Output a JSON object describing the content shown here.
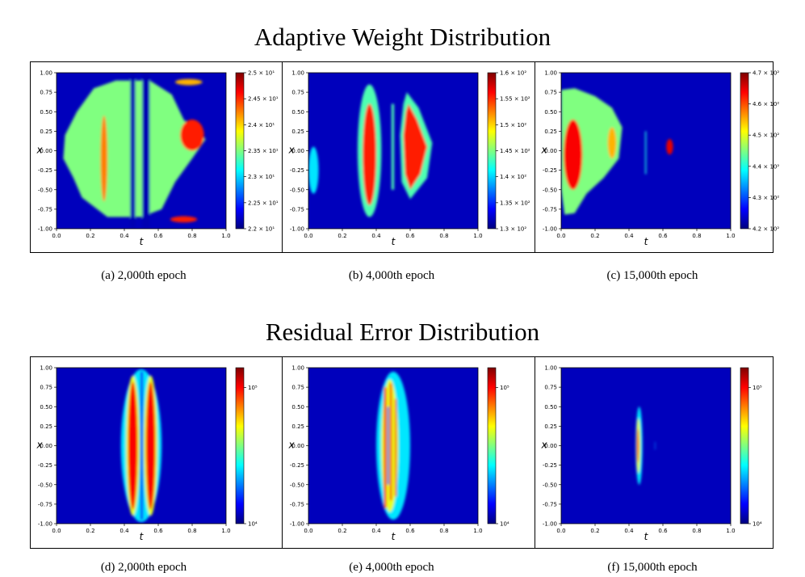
{
  "titles": {
    "top": "Adaptive Weight Distribution",
    "bottom": "Residual Error Distribution"
  },
  "colormap": [
    "#00007f",
    "#0000ff",
    "#0080ff",
    "#00ffff",
    "#80ff80",
    "#ffff00",
    "#ff8000",
    "#ff0000",
    "#7f0000"
  ],
  "chart_data": [
    {
      "type": "heatmap",
      "caption": "(a) 2,000th epoch",
      "xlabel": "t",
      "ylabel": "x",
      "xlim": [
        0.0,
        1.0
      ],
      "ylim": [
        -1.0,
        1.0
      ],
      "xticks": [
        "0.0",
        "0.2",
        "0.4",
        "0.6",
        "0.8",
        "1.0"
      ],
      "yticks": [
        "1.00",
        "0.75",
        "0.50",
        "0.25",
        "0.00",
        "-0.25",
        "-0.50",
        "-0.75",
        "-1.00"
      ],
      "colorbar": {
        "range": [
          22,
          25
        ],
        "ticks": [
          {
            "value": 25,
            "label": "2.5 × 10¹"
          },
          {
            "value": 24.5,
            "label": "2.45 × 10¹"
          },
          {
            "value": 24,
            "label": "2.4 × 10¹"
          },
          {
            "value": 23.5,
            "label": "2.35 × 10¹"
          },
          {
            "value": 23,
            "label": "2.3 × 10¹"
          },
          {
            "value": 22.5,
            "label": "2.25 × 10¹"
          },
          {
            "value": 22,
            "label": "2.2 × 10¹"
          }
        ]
      },
      "regions": [
        {
          "shape": "poly",
          "level": 0.5,
          "points": [
            [
              0.05,
              0.2
            ],
            [
              0.12,
              0.5
            ],
            [
              0.22,
              0.8
            ],
            [
              0.35,
              0.9
            ],
            [
              0.55,
              0.9
            ],
            [
              0.68,
              0.72
            ],
            [
              0.75,
              0.4
            ],
            [
              0.84,
              0.2
            ],
            [
              0.88,
              0.15
            ],
            [
              0.8,
              -0.1
            ],
            [
              0.7,
              -0.4
            ],
            [
              0.62,
              -0.75
            ],
            [
              0.5,
              -0.85
            ],
            [
              0.3,
              -0.85
            ],
            [
              0.15,
              -0.6
            ],
            [
              0.1,
              -0.35
            ],
            [
              0.04,
              -0.1
            ]
          ]
        },
        {
          "shape": "rect",
          "level": 0.05,
          "t0": 0.435,
          "t1": 0.465,
          "x0": -1.0,
          "x1": 1.0
        },
        {
          "shape": "rect",
          "level": 0.05,
          "t0": 0.505,
          "t1": 0.55,
          "x0": -1.0,
          "x1": 1.0
        },
        {
          "shape": "ellipse",
          "level": 0.85,
          "t": 0.8,
          "x": 0.2,
          "rt": 0.07,
          "rx": 0.2
        },
        {
          "shape": "ellipse",
          "level": 0.75,
          "t": 0.28,
          "x": -0.1,
          "rt": 0.02,
          "rx": 0.55
        },
        {
          "shape": "ellipse",
          "level": 0.85,
          "t": 0.75,
          "x": -0.88,
          "rt": 0.08,
          "rx": 0.04
        },
        {
          "shape": "ellipse",
          "level": 0.7,
          "t": 0.78,
          "x": 0.88,
          "rt": 0.08,
          "rx": 0.04
        }
      ]
    },
    {
      "type": "heatmap",
      "caption": "(b) 4,000th epoch",
      "xlabel": "t",
      "ylabel": "x",
      "xlim": [
        0.0,
        1.0
      ],
      "ylim": [
        -1.0,
        1.0
      ],
      "xticks": [
        "0.0",
        "0.2",
        "0.4",
        "0.6",
        "0.8",
        "1.0"
      ],
      "yticks": [
        "1.00",
        "0.75",
        "0.50",
        "0.25",
        "0.00",
        "-0.25",
        "-0.50",
        "-0.75",
        "-1.00"
      ],
      "colorbar": {
        "range": [
          130,
          160
        ],
        "ticks": [
          {
            "value": 160,
            "label": "1.6 × 10²"
          },
          {
            "value": 155,
            "label": "1.55 × 10²"
          },
          {
            "value": 150,
            "label": "1.5 × 10²"
          },
          {
            "value": 145,
            "label": "1.45 × 10²"
          },
          {
            "value": 140,
            "label": "1.4 × 10²"
          },
          {
            "value": 135,
            "label": "1.35 × 10²"
          },
          {
            "value": 130,
            "label": "1.3 × 10²"
          }
        ]
      },
      "regions": [
        {
          "shape": "ellipse",
          "level": 0.45,
          "t": 0.36,
          "x": 0.0,
          "rt": 0.07,
          "rx": 0.85
        },
        {
          "shape": "ellipse",
          "level": 0.85,
          "t": 0.36,
          "x": -0.05,
          "rt": 0.04,
          "rx": 0.65
        },
        {
          "shape": "rect",
          "level": 0.45,
          "t0": 0.49,
          "t1": 0.505,
          "x0": -0.5,
          "x1": 0.6
        },
        {
          "shape": "poly",
          "level": 0.45,
          "points": [
            [
              0.58,
              0.75
            ],
            [
              0.65,
              0.55
            ],
            [
              0.73,
              0.1
            ],
            [
              0.7,
              -0.35
            ],
            [
              0.6,
              -0.62
            ],
            [
              0.55,
              -0.4
            ],
            [
              0.54,
              0.2
            ],
            [
              0.56,
              0.6
            ]
          ]
        },
        {
          "shape": "poly",
          "level": 0.85,
          "points": [
            [
              0.59,
              0.6
            ],
            [
              0.64,
              0.4
            ],
            [
              0.7,
              0.05
            ],
            [
              0.66,
              -0.3
            ],
            [
              0.6,
              -0.5
            ],
            [
              0.57,
              -0.3
            ],
            [
              0.56,
              0.2
            ],
            [
              0.575,
              0.5
            ]
          ]
        },
        {
          "shape": "ellipse",
          "level": 0.35,
          "t": 0.03,
          "x": -0.25,
          "rt": 0.03,
          "rx": 0.3
        }
      ]
    },
    {
      "type": "heatmap",
      "caption": "(c) 15,000th epoch",
      "xlabel": "t",
      "ylabel": "x",
      "xlim": [
        0.0,
        1.0
      ],
      "ylim": [
        -1.0,
        1.0
      ],
      "xticks": [
        "0.0",
        "0.2",
        "0.4",
        "0.6",
        "0.8",
        "1.0"
      ],
      "yticks": [
        "1.00",
        "0.75",
        "0.50",
        "0.25",
        "0.00",
        "-0.25",
        "-0.50",
        "-0.75",
        "-1.00"
      ],
      "colorbar": {
        "range": [
          420,
          470
        ],
        "ticks": [
          {
            "value": 470,
            "label": "4.7 × 10²"
          },
          {
            "value": 460,
            "label": "4.6 × 10²"
          },
          {
            "value": 450,
            "label": "4.5 × 10²"
          },
          {
            "value": 440,
            "label": "4.4 × 10²"
          },
          {
            "value": 430,
            "label": "4.3 × 10²"
          },
          {
            "value": 420,
            "label": "4.2 × 10²"
          }
        ]
      },
      "regions": [
        {
          "shape": "poly",
          "level": 0.5,
          "points": [
            [
              0.0,
              0.78
            ],
            [
              0.08,
              0.8
            ],
            [
              0.2,
              0.7
            ],
            [
              0.3,
              0.55
            ],
            [
              0.36,
              0.3
            ],
            [
              0.34,
              -0.1
            ],
            [
              0.25,
              -0.35
            ],
            [
              0.15,
              -0.55
            ],
            [
              0.08,
              -0.8
            ],
            [
              0.02,
              -0.82
            ],
            [
              0.0,
              -0.5
            ]
          ]
        },
        {
          "shape": "ellipse",
          "level": 0.88,
          "t": 0.07,
          "x": -0.05,
          "rt": 0.055,
          "rx": 0.45
        },
        {
          "shape": "ellipse",
          "level": 0.7,
          "t": 0.3,
          "x": 0.1,
          "rt": 0.025,
          "rx": 0.2
        },
        {
          "shape": "ellipse",
          "level": 0.9,
          "t": 0.64,
          "x": 0.05,
          "rt": 0.02,
          "rx": 0.1
        },
        {
          "shape": "rect",
          "level": 0.4,
          "t0": 0.495,
          "t1": 0.502,
          "x0": -0.3,
          "x1": 0.25
        }
      ]
    },
    {
      "type": "heatmap",
      "caption": "(d) 2,000th epoch",
      "xlabel": "t",
      "ylabel": "x",
      "xlim": [
        0.0,
        1.0
      ],
      "ylim": [
        -1.0,
        1.0
      ],
      "xticks": [
        "0.0",
        "0.2",
        "0.4",
        "0.6",
        "0.8",
        "1.0"
      ],
      "yticks": [
        "1.00",
        "0.75",
        "0.50",
        "0.25",
        "0.00",
        "-0.25",
        "-0.50",
        "-0.75",
        "-1.00"
      ],
      "colorbar": {
        "range": [
          10000,
          140000
        ],
        "log": true,
        "ticks": [
          {
            "value": 100000,
            "label": "10⁵"
          },
          {
            "value": 10000,
            "label": "10⁴"
          }
        ]
      },
      "regions": [
        {
          "shape": "ellipse",
          "level": 0.35,
          "t": 0.5,
          "x": 0.0,
          "rt": 0.12,
          "rx": 0.98
        },
        {
          "shape": "ellipse",
          "level": 0.6,
          "t": 0.45,
          "x": 0.0,
          "rt": 0.04,
          "rx": 0.9
        },
        {
          "shape": "ellipse",
          "level": 0.88,
          "t": 0.45,
          "x": 0.0,
          "rt": 0.028,
          "rx": 0.82
        },
        {
          "shape": "ellipse",
          "level": 0.6,
          "t": 0.555,
          "x": 0.0,
          "rt": 0.04,
          "rx": 0.9
        },
        {
          "shape": "ellipse",
          "level": 0.88,
          "t": 0.555,
          "x": 0.0,
          "rt": 0.028,
          "rx": 0.82
        },
        {
          "shape": "rect",
          "level": 0.12,
          "t0": 0.495,
          "t1": 0.51,
          "x0": -0.95,
          "x1": 0.95
        }
      ]
    },
    {
      "type": "heatmap",
      "caption": "(e) 4,000th epoch",
      "xlabel": "t",
      "ylabel": "x",
      "xlim": [
        0.0,
        1.0
      ],
      "ylim": [
        -1.0,
        1.0
      ],
      "xticks": [
        "0.0",
        "0.2",
        "0.4",
        "0.6",
        "0.8",
        "1.0"
      ],
      "yticks": [
        "1.00",
        "0.75",
        "0.50",
        "0.25",
        "0.00",
        "-0.25",
        "-0.50",
        "-0.75",
        "-1.00"
      ],
      "colorbar": {
        "range": [
          10000,
          140000
        ],
        "log": true,
        "ticks": [
          {
            "value": 100000,
            "label": "10⁵"
          },
          {
            "value": 10000,
            "label": "10⁴"
          }
        ]
      },
      "regions": [
        {
          "shape": "ellipse",
          "level": 0.35,
          "t": 0.5,
          "x": 0.0,
          "rt": 0.1,
          "rx": 0.95
        },
        {
          "shape": "ellipse",
          "level": 0.6,
          "t": 0.48,
          "x": 0.0,
          "rt": 0.05,
          "rx": 0.85
        },
        {
          "shape": "rect",
          "level": 0.88,
          "t0": 0.445,
          "t1": 0.46,
          "x0": -0.8,
          "x1": 0.75
        },
        {
          "shape": "rect",
          "level": 0.85,
          "t0": 0.48,
          "t1": 0.492,
          "x0": -0.7,
          "x1": 0.8
        },
        {
          "shape": "rect",
          "level": 0.88,
          "t0": 0.51,
          "t1": 0.52,
          "x0": -0.65,
          "x1": 0.6
        },
        {
          "shape": "rect",
          "level": 0.2,
          "t0": 0.465,
          "t1": 0.475,
          "x0": -0.5,
          "x1": 0.5
        }
      ]
    },
    {
      "type": "heatmap",
      "caption": "(f) 15,000th epoch",
      "xlabel": "t",
      "ylabel": "x",
      "xlim": [
        0.0,
        1.0
      ],
      "ylim": [
        -1.0,
        1.0
      ],
      "xticks": [
        "0.0",
        "0.2",
        "0.4",
        "0.6",
        "0.8",
        "1.0"
      ],
      "yticks": [
        "1.00",
        "0.75",
        "0.50",
        "0.25",
        "0.00",
        "-0.25",
        "-0.50",
        "-0.75",
        "-1.00"
      ],
      "colorbar": {
        "range": [
          10000,
          140000
        ],
        "log": true,
        "ticks": [
          {
            "value": 100000,
            "label": "10⁵"
          },
          {
            "value": 10000,
            "label": "10⁴"
          }
        ]
      },
      "regions": [
        {
          "shape": "ellipse",
          "level": 0.35,
          "t": 0.46,
          "x": 0.0,
          "rt": 0.02,
          "rx": 0.5
        },
        {
          "shape": "ellipse",
          "level": 0.6,
          "t": 0.455,
          "x": 0.0,
          "rt": 0.012,
          "rx": 0.35
        },
        {
          "shape": "ellipse",
          "level": 0.88,
          "t": 0.452,
          "x": 0.0,
          "rt": 0.006,
          "rx": 0.22
        },
        {
          "shape": "rect",
          "level": 0.25,
          "t0": 0.552,
          "t1": 0.556,
          "x0": -0.05,
          "x1": 0.05
        }
      ]
    }
  ]
}
